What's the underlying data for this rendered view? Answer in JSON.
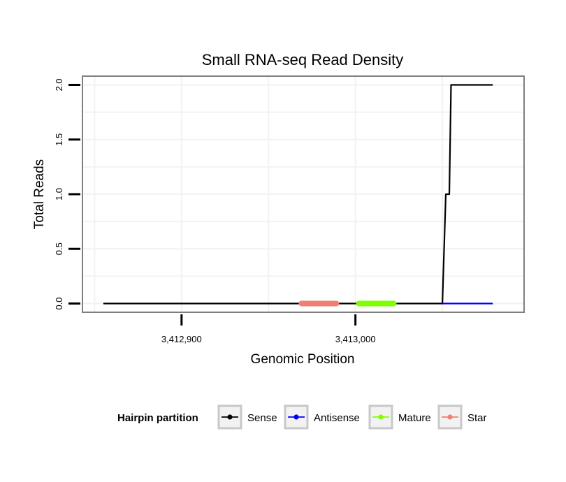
{
  "chart_data": {
    "type": "line",
    "title": "Small RNA-seq Read Density",
    "xlabel": "Genomic Position",
    "ylabel": "Total Reads",
    "xlim": [
      3412843,
      3413097
    ],
    "ylim": [
      -0.08,
      2.08
    ],
    "x_ticks": [
      {
        "value": 3412900,
        "label": "3,412,900"
      },
      {
        "value": 3413000,
        "label": "3,413,000"
      }
    ],
    "y_ticks": [
      {
        "value": 0,
        "label": "0.0"
      },
      {
        "value": 0.5,
        "label": "0.5"
      },
      {
        "value": 1,
        "label": "1.0"
      },
      {
        "value": 1.5,
        "label": "1.5"
      },
      {
        "value": 2,
        "label": "2.0"
      }
    ],
    "grid": true,
    "series": [
      {
        "name": "Sense",
        "color": "#000000",
        "width": 2.2,
        "x": [
          3412855,
          3413050,
          3413052,
          3413054,
          3413055,
          3413079
        ],
        "y": [
          0,
          0,
          1.0,
          1.0,
          2.0,
          2.0
        ]
      },
      {
        "name": "Antisense",
        "color": "#0000ff",
        "width": 2.2,
        "x": [
          3413050,
          3413079
        ],
        "y": [
          0,
          0
        ]
      },
      {
        "name": "Mature",
        "color": "#7fff00",
        "width": 8,
        "x": [
          3413002,
          3413022
        ],
        "y": [
          0,
          0
        ]
      },
      {
        "name": "Star",
        "color": "#f08070",
        "width": 8,
        "x": [
          3412969,
          3412989
        ],
        "y": [
          0,
          0
        ]
      }
    ],
    "legend": {
      "title": "Hairpin partition",
      "position": "bottom",
      "items": [
        {
          "label": "Sense",
          "color": "#000000"
        },
        {
          "label": "Antisense",
          "color": "#0000ff"
        },
        {
          "label": "Mature",
          "color": "#7fff00"
        },
        {
          "label": "Star",
          "color": "#f08070"
        }
      ]
    }
  }
}
